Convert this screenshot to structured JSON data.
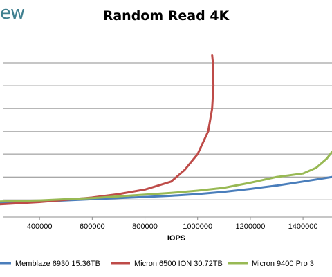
{
  "logo_text": "ew",
  "chart_data": {
    "type": "line",
    "title": "Random Read 4K",
    "xlabel": "IOPS",
    "ylabel": "",
    "x_ticks": [
      400000,
      600000,
      800000,
      1000000,
      1200000,
      1400000
    ],
    "x_tick_labels": [
      "400000",
      "600000",
      "800000",
      "1000000",
      "1200000",
      "1400000"
    ],
    "xlim": [
      250000,
      1510000
    ],
    "ylim": [
      -1.5,
      14
    ],
    "y_grid": [
      0,
      2,
      4,
      6,
      8,
      10,
      12
    ],
    "grid": true,
    "legend_position": "bottom",
    "series": [
      {
        "name": "Memblaze 6930 15.36TB",
        "color": "#4a7ebb",
        "points": [
          [
            250000,
            -0.3
          ],
          [
            400000,
            -0.15
          ],
          [
            500000,
            -0.05
          ],
          [
            600000,
            0.05
          ],
          [
            700000,
            0.15
          ],
          [
            800000,
            0.25
          ],
          [
            900000,
            0.35
          ],
          [
            1000000,
            0.5
          ],
          [
            1100000,
            0.7
          ],
          [
            1200000,
            0.95
          ],
          [
            1300000,
            1.25
          ],
          [
            1400000,
            1.6
          ],
          [
            1510000,
            2.0
          ]
        ]
      },
      {
        "name": "Micron 6500 ION 30.72TB",
        "color": "#be4b48",
        "points": [
          [
            250000,
            -0.4
          ],
          [
            400000,
            -0.2
          ],
          [
            500000,
            0.0
          ],
          [
            600000,
            0.2
          ],
          [
            700000,
            0.5
          ],
          [
            800000,
            0.9
          ],
          [
            900000,
            1.6
          ],
          [
            950000,
            2.6
          ],
          [
            1000000,
            4.0
          ],
          [
            1040000,
            6.0
          ],
          [
            1055000,
            8.0
          ],
          [
            1060000,
            10.0
          ],
          [
            1058000,
            12.0
          ],
          [
            1055000,
            12.7
          ]
        ]
      },
      {
        "name": "Micron 9400 Pro 3",
        "color": "#98b954",
        "points": [
          [
            250000,
            -0.15
          ],
          [
            400000,
            -0.05
          ],
          [
            500000,
            0.05
          ],
          [
            600000,
            0.15
          ],
          [
            700000,
            0.3
          ],
          [
            800000,
            0.45
          ],
          [
            900000,
            0.6
          ],
          [
            1000000,
            0.8
          ],
          [
            1100000,
            1.05
          ],
          [
            1200000,
            1.5
          ],
          [
            1300000,
            2.0
          ],
          [
            1400000,
            2.3
          ],
          [
            1450000,
            2.8
          ],
          [
            1490000,
            3.6
          ],
          [
            1510000,
            4.2
          ]
        ]
      }
    ]
  }
}
